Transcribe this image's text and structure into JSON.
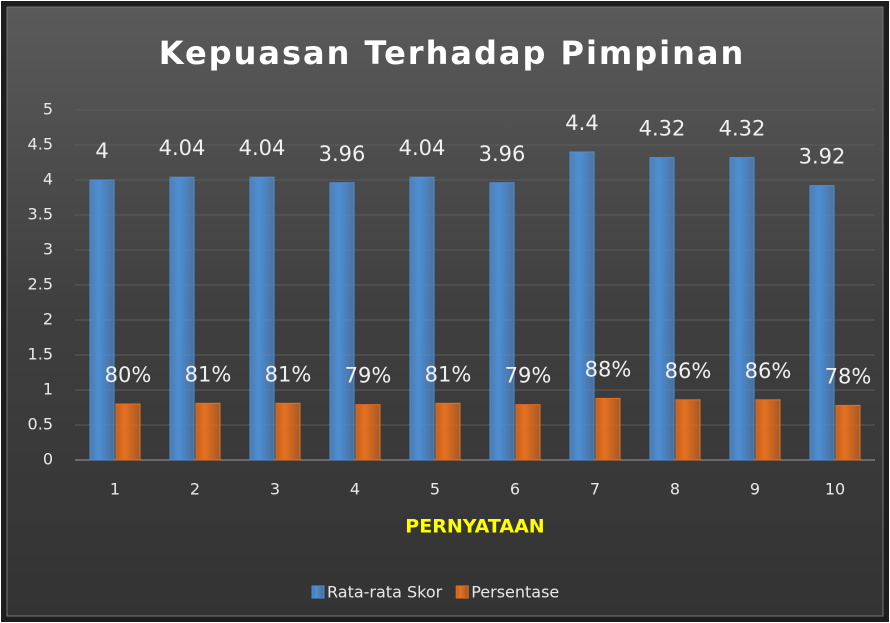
{
  "chart_data": {
    "type": "bar",
    "title": "Kepuasan Terhadap Pimpinan",
    "x_label": "PERNYATAAN",
    "categories": [
      "1",
      "2",
      "3",
      "4",
      "5",
      "6",
      "7",
      "8",
      "9",
      "10"
    ],
    "series": [
      {
        "name": "Rata-rata Skor",
        "color": "#4f8fd6",
        "values": [
          4,
          4.04,
          4.04,
          3.96,
          4.04,
          3.96,
          4.4,
          4.32,
          4.32,
          3.92
        ]
      },
      {
        "name": "Persentase",
        "color": "#e8701e",
        "values": [
          0.8,
          0.81,
          0.81,
          0.79,
          0.81,
          0.79,
          0.88,
          0.86,
          0.86,
          0.78
        ],
        "value_labels": [
          "80%",
          "81%",
          "81%",
          "79%",
          "81%",
          "79%",
          "88%",
          "86%",
          "86%",
          "78%"
        ]
      }
    ],
    "ylim": [
      0,
      5
    ],
    "yticks": [
      0,
      0.5,
      1,
      1.5,
      2,
      2.5,
      3,
      3.5,
      4,
      4.5,
      5
    ],
    "grid": true,
    "legend": "bottom"
  }
}
